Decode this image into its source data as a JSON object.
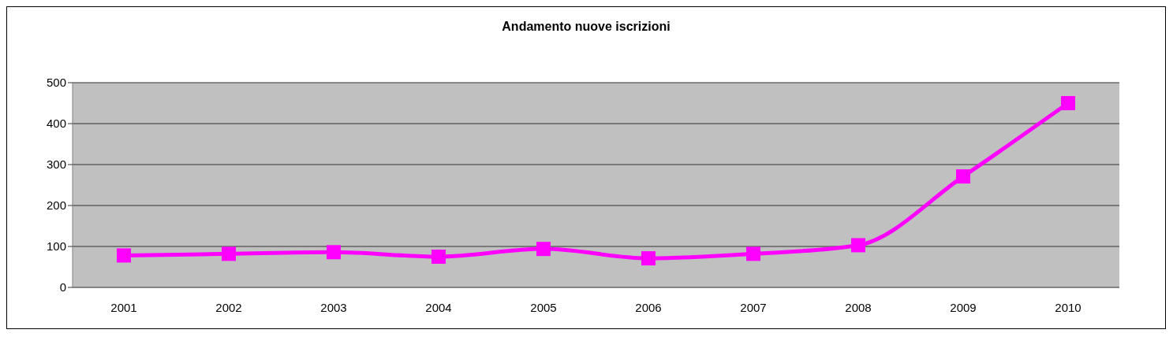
{
  "chart_data": {
    "type": "line",
    "title": "Andamento nuove iscrizioni",
    "categories": [
      "2001",
      "2002",
      "2003",
      "2004",
      "2005",
      "2006",
      "2007",
      "2008",
      "2009",
      "2010"
    ],
    "series": [
      {
        "color": "#ff00ff",
        "values": [
          78,
          82,
          86,
          75,
          94,
          71,
          82,
          103,
          271,
          450
        ]
      }
    ],
    "ylim": [
      0,
      500
    ],
    "yticks": [
      0,
      100,
      200,
      300,
      400,
      500
    ],
    "grid": "y",
    "marker": "square"
  }
}
